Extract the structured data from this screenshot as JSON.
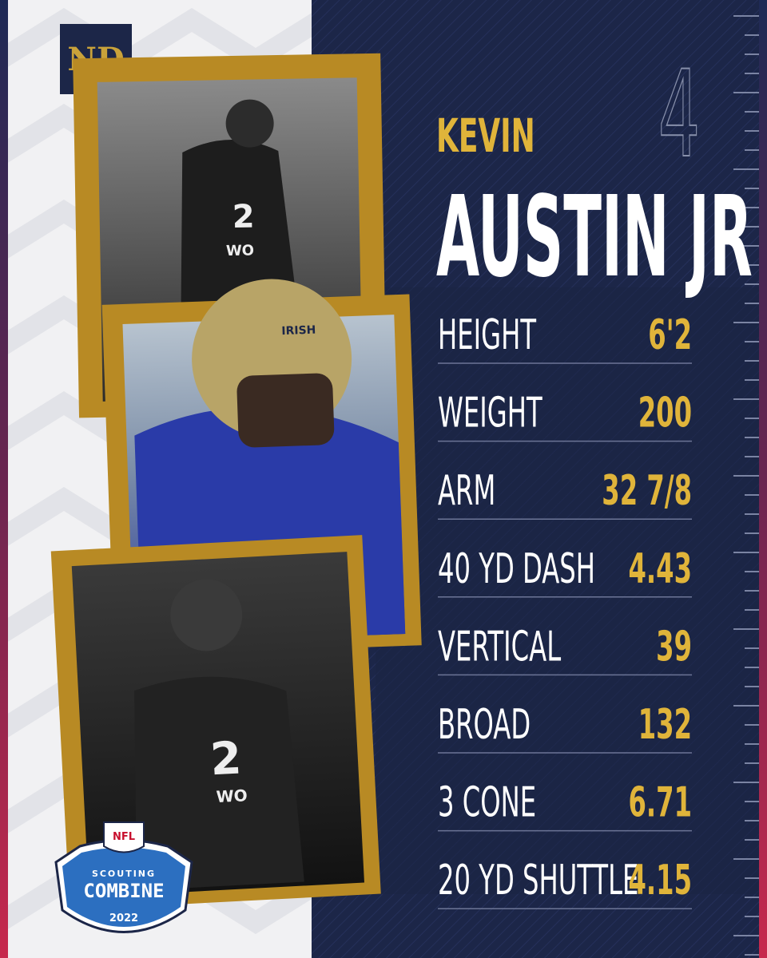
{
  "logo": "ND",
  "jersey_number": "4",
  "player": {
    "first_name": "KEVIN",
    "last_name": "AUSTIN JR"
  },
  "photos": [
    {
      "jersey_number": "2",
      "jersey_text": "WO"
    },
    {
      "helmet_text": "IRISH"
    },
    {
      "jersey_number": "2",
      "jersey_text": "WO"
    }
  ],
  "stats": [
    {
      "label": "HEIGHT",
      "value": "6'2"
    },
    {
      "label": "WEIGHT",
      "value": "200"
    },
    {
      "label": "ARM",
      "value": "32 7/8"
    },
    {
      "label": "40 YD DASH",
      "value": "4.43"
    },
    {
      "label": "VERTICAL",
      "value": "39"
    },
    {
      "label": "BROAD",
      "value": "132"
    },
    {
      "label": "3 CONE",
      "value": "6.71"
    },
    {
      "label": "20 YD SHUTTLE",
      "value": "4.15"
    }
  ],
  "badge": {
    "league": "NFL",
    "line1": "SCOUTING",
    "line2": "COMBINE",
    "year": "2022"
  }
}
